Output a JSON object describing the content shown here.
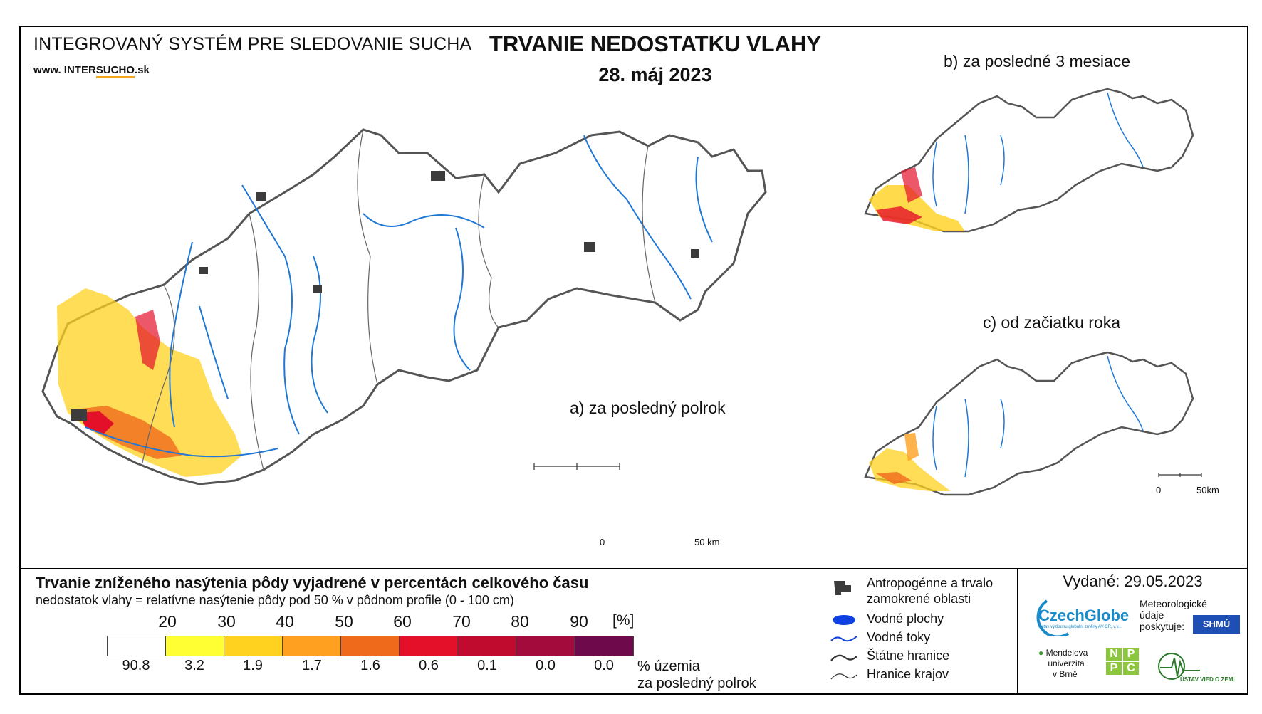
{
  "header": {
    "system_title": "INTEGROVANÝ SYSTÉM PRE SLEDOVANIE SUCHA",
    "url_prefix": "www. INTER",
    "url_mid": "SUCHO",
    "url_suffix": ".sk",
    "map_title": "TRVANIE NEDOSTATKU VLAHY",
    "map_date": "28. máj 2023"
  },
  "maps": {
    "a_label": "a) za posledný polrok",
    "b_label": "b) za posledné 3 mesiace",
    "c_label": "c) od začiatku roka",
    "scale_zero": "0",
    "scale_big": "50 km",
    "scale_small": "50km"
  },
  "legend": {
    "title": "Trvanie zníženého nasýtenia pôdy vyjadrené v percentách celkového času",
    "subtitle": "nedostatok vlahy = relatívne nasýtenie pôdy pod 50 % v pôdnom profile (0 - 100 cm)",
    "ticks": [
      "20",
      "30",
      "40",
      "50",
      "60",
      "70",
      "80",
      "90"
    ],
    "unit": "[%]",
    "colors": [
      "#ffffff",
      "#ffff33",
      "#ffd21f",
      "#ffa020",
      "#f06a1c",
      "#e4102a",
      "#c00a2e",
      "#a30b3c",
      "#6e0a4b"
    ],
    "percentages": [
      "90.8",
      "3.2",
      "1.9",
      "1.7",
      "1.6",
      "0.6",
      "0.1",
      "0.0",
      "0.0"
    ],
    "pct_title_line1": "% územia",
    "pct_title_line2": "za posledný polrok"
  },
  "symbols": {
    "anthropogenic_line1": "Antropogénne a trvalo",
    "anthropogenic_line2": "zamokrené oblasti",
    "water_bodies": "Vodné plochy",
    "water_streams": "Vodné toky",
    "state_borders": "Štátne hranice",
    "region_borders": "Hranice krajov"
  },
  "issuer": {
    "issued": "Vydané: 29.05.2023",
    "czechglobe": "CzechGlobe",
    "czechglobe_sub": "Ústav výzkumu globální změny AV ČR, v.v.i.",
    "meteo_line1": "Meteorologické",
    "meteo_line2": "údaje",
    "meteo_line3": "poskytuje:",
    "shmu": "SHMÚ",
    "mendel_line1": "Mendelova",
    "mendel_line2": "univerzita",
    "mendel_line3": "v Brně",
    "nppc": [
      "N",
      "P",
      "P",
      "C"
    ],
    "uvz": "ÚSTAV VIED O ZEMI"
  },
  "colors": {
    "river": "#1f77d6",
    "urban": "#3c3c3c",
    "border": "#444444"
  }
}
